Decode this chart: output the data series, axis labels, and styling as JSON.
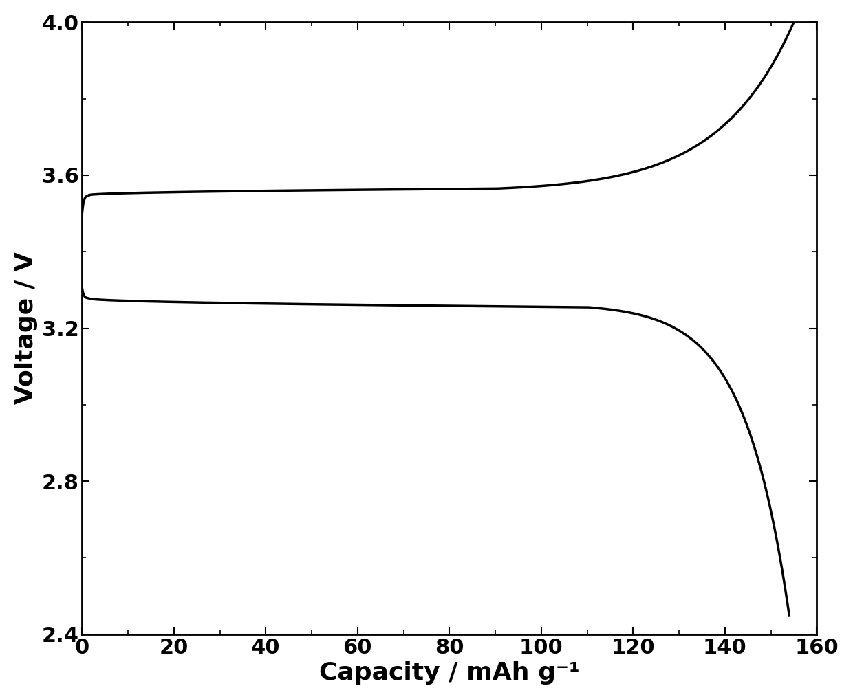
{
  "title": "",
  "xlabel": "Capacity / mAh g⁻¹",
  "ylabel": "Voltage / V",
  "xlim": [
    0,
    160
  ],
  "ylim": [
    2.4,
    4.0
  ],
  "xticks": [
    0,
    20,
    40,
    60,
    80,
    100,
    120,
    140,
    160
  ],
  "yticks": [
    2.4,
    2.8,
    3.2,
    3.6,
    4.0
  ],
  "line_color": "#000000",
  "line_width": 2.5,
  "background_color": "#ffffff"
}
